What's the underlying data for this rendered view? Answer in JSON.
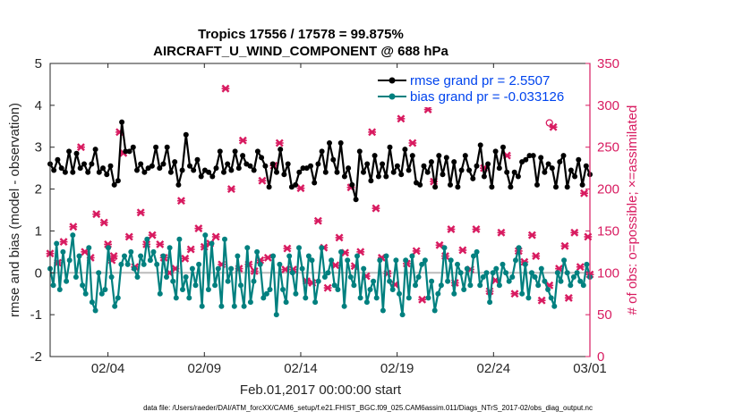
{
  "chart_data": {
    "type": "line",
    "title": "Tropics 17556 / 17578 = 99.875%",
    "subtitle": "AIRCRAFT_U_WIND_COMPONENT @ 688 hPa",
    "xlabel": "Feb.01,2017 00:00:00 start",
    "ylabel": "rmse and bias (model - observation)",
    "ylabel_right": "# of obs: o=possible; ×=assimilated",
    "xlim": [
      0,
      28
    ],
    "ylim": [
      -2,
      5
    ],
    "ylim_right": [
      0,
      350
    ],
    "x_ticks": [
      3,
      8,
      13,
      18,
      23,
      28
    ],
    "x_tick_labels": [
      "02/04",
      "02/09",
      "02/14",
      "02/19",
      "02/24",
      "03/01"
    ],
    "y_ticks": [
      -2,
      -1,
      0,
      1,
      2,
      3,
      4,
      5
    ],
    "y_tick_labels": [
      "-2",
      "-1",
      "0",
      "1",
      "2",
      "3",
      "4",
      "5"
    ],
    "y_ticks_right": [
      0,
      50,
      100,
      150,
      200,
      250,
      300,
      350
    ],
    "y_tick_labels_right": [
      "0",
      "50",
      "100",
      "150",
      "200",
      "250",
      "300",
      "350"
    ],
    "zero_line": 0,
    "footnote": "data file: /Users/raeder/DAI/ATM_forcXX/CAM6_setup/f.e21.FHIST_BGC.f09_025.CAM6assim.011/Diags_NTrS_2017-02/obs_diag_output.nc",
    "series": [
      {
        "name": "rmse grand pr = 2.5507",
        "color": "#000000",
        "marker": "circle",
        "axis": "left",
        "values": [
          2.6,
          2.45,
          2.7,
          2.5,
          2.4,
          2.9,
          2.4,
          2.85,
          2.5,
          2.6,
          2.4,
          2.6,
          2.95,
          2.4,
          2.5,
          2.35,
          2.55,
          2.1,
          2.2,
          3.6,
          2.9,
          2.9,
          3.0,
          2.45,
          2.6,
          2.4,
          2.5,
          2.55,
          3.0,
          2.5,
          2.6,
          3.0,
          2.4,
          2.65,
          2.1,
          2.45,
          3.3,
          2.55,
          2.45,
          2.7,
          2.3,
          2.45,
          2.4,
          2.3,
          2.5,
          2.9,
          2.4,
          2.6,
          2.45,
          2.9,
          2.5,
          2.8,
          2.6,
          2.55,
          2.45,
          2.9,
          2.75,
          2.55,
          2.05,
          2.6,
          2.4,
          2.95,
          2.35,
          2.6,
          2.05,
          2.1,
          2.4,
          2.5,
          2.5,
          2.55,
          2.15,
          2.6,
          2.9,
          2.4,
          3.1,
          2.7,
          2.4,
          3.1,
          2.3,
          2.5,
          2.1,
          1.75,
          2.9,
          2.4,
          2.6,
          2.2,
          2.8,
          2.3,
          2.6,
          2.3,
          3.0,
          2.4,
          2.55,
          2.35,
          2.95,
          2.45,
          2.8,
          2.15,
          2.1,
          2.55,
          2.4,
          2.65,
          2.05,
          2.8,
          2.35,
          2.75,
          2.1,
          2.65,
          2.05,
          2.45,
          2.8,
          2.45,
          2.25,
          2.55,
          3.05,
          2.3,
          2.6,
          2.05,
          2.9,
          2.5,
          3.0,
          2.4,
          2.05,
          2.4,
          2.3,
          2.65,
          2.7,
          2.8,
          2.8,
          2.1,
          2.75,
          2.4,
          2.6,
          2.5,
          2.05,
          2.65,
          2.8,
          2.05,
          2.45,
          2.3,
          2.7,
          2.1,
          2.55,
          2.35
        ]
      },
      {
        "name": "bias grand pr = -0.033126",
        "color": "#00807f",
        "marker": "circle",
        "axis": "left",
        "values": [
          0.1,
          -0.3,
          0.7,
          -0.4,
          0.5,
          -0.2,
          0.3,
          0.9,
          -0.1,
          0.4,
          -0.3,
          -0.5,
          0.6,
          -0.7,
          -0.9,
          0.0,
          -0.5,
          -0.4,
          0.6,
          -0.1,
          -0.8,
          -0.6,
          0.2,
          0.4,
          0.2,
          0.5,
          0.1,
          -0.1,
          0.4,
          0.2,
          0.8,
          0.3,
          0.5,
          0.2,
          -0.5,
          0.4,
          -0.1,
          0.6,
          -0.2,
          -0.6,
          0.8,
          -0.4,
          -0.1,
          -0.6,
          0.1,
          -0.3,
          0.2,
          -0.8,
          0.9,
          -0.4,
          0.7,
          -0.3,
          0.1,
          -0.8,
          0.8,
          -0.2,
          0.1,
          -0.8,
          0.4,
          -0.3,
          -0.8,
          0.6,
          -0.7,
          -0.2,
          0.5,
          0.2,
          -0.6,
          -0.5,
          -0.4,
          0.4,
          -1.0,
          0.2,
          -0.4,
          -0.7,
          0.4,
          0.0,
          -0.5,
          0.6,
          0.1,
          -0.6,
          0.4,
          0.3,
          -0.7,
          -0.2,
          0.6,
          -0.1,
          0.0,
          0.3,
          -0.3,
          -0.4,
          0.5,
          -0.8,
          0.3,
          -0.1,
          -0.3,
          0.4,
          -0.6,
          0.1,
          -0.7,
          -0.4,
          -0.2,
          -0.6,
          0.3,
          -0.9,
          0.4,
          -0.2,
          -0.4,
          0.3,
          -0.5,
          -1.0,
          0.3,
          -0.6,
          0.4,
          -0.3,
          -0.1,
          0.2,
          0.3,
          -0.6,
          -0.2,
          -0.9,
          -0.5,
          -0.3,
          0.6,
          -0.2,
          0.3,
          -0.5,
          0.2,
          0.0,
          -0.4,
          0.1,
          -0.3,
          0.4,
          0.5,
          -0.3,
          -0.1,
          0.0,
          -0.7,
          0.0,
          0.1,
          -0.3,
          0.2,
          0.0,
          -0.2,
          -0.1,
          0.3,
          0.6,
          -0.5,
          0.2,
          -0.6,
          0.0,
          -0.1,
          -0.3,
          0.1,
          -0.2,
          -0.4,
          -0.6,
          -0.8,
          0.0,
          -0.2,
          0.3,
          0.0,
          -0.3,
          -0.1,
          0.0,
          -0.2,
          -0.3,
          0.2,
          -0.1
        ]
      }
    ],
    "obs_counts": {
      "color": "#d81b60",
      "axis": "right",
      "assimilated": [
        [
          0.0,
          123
        ],
        [
          0.4,
          112
        ],
        [
          0.7,
          137
        ],
        [
          1.2,
          155
        ],
        [
          1.6,
          250
        ],
        [
          1.8,
          125
        ],
        [
          2.1,
          118
        ],
        [
          2.4,
          170
        ],
        [
          2.8,
          160
        ],
        [
          3.0,
          134
        ],
        [
          3.2,
          115
        ],
        [
          3.3,
          120
        ],
        [
          3.6,
          268
        ],
        [
          3.8,
          243
        ],
        [
          4.1,
          143
        ],
        [
          4.4,
          107
        ],
        [
          4.7,
          172
        ],
        [
          5.0,
          134
        ],
        [
          5.3,
          145
        ],
        [
          5.7,
          134
        ],
        [
          5.9,
          118
        ],
        [
          6.2,
          100
        ],
        [
          6.5,
          105
        ],
        [
          6.8,
          186
        ],
        [
          7.0,
          117
        ],
        [
          7.3,
          128
        ],
        [
          7.7,
          153
        ],
        [
          8.0,
          131
        ],
        [
          8.3,
          135
        ],
        [
          8.6,
          143
        ],
        [
          8.9,
          110
        ],
        [
          9.1,
          320
        ],
        [
          9.4,
          200
        ],
        [
          9.8,
          105
        ],
        [
          10.0,
          258
        ],
        [
          10.3,
          110
        ],
        [
          10.6,
          102
        ],
        [
          10.9,
          115
        ],
        [
          11.0,
          210
        ],
        [
          11.3,
          118
        ],
        [
          11.6,
          228
        ],
        [
          11.9,
          255
        ],
        [
          12.2,
          104
        ],
        [
          12.3,
          129
        ],
        [
          12.6,
          104
        ],
        [
          13.0,
          201
        ],
        [
          13.3,
          90
        ],
        [
          13.6,
          88
        ],
        [
          13.9,
          162
        ],
        [
          14.2,
          130
        ],
        [
          14.4,
          82
        ],
        [
          14.8,
          109
        ],
        [
          15.0,
          142
        ],
        [
          15.3,
          124
        ],
        [
          15.6,
          202
        ],
        [
          15.8,
          108
        ],
        [
          16.1,
          125
        ],
        [
          16.4,
          96
        ],
        [
          16.7,
          268
        ],
        [
          16.9,
          177
        ],
        [
          17.2,
          118
        ],
        [
          17.5,
          99
        ],
        [
          17.9,
          86
        ],
        [
          18.2,
          284
        ],
        [
          18.5,
          111
        ],
        [
          18.8,
          255
        ],
        [
          19.0,
          126
        ],
        [
          19.3,
          68
        ],
        [
          19.6,
          295
        ],
        [
          19.9,
          209
        ],
        [
          20.2,
          133
        ],
        [
          20.5,
          120
        ],
        [
          20.8,
          152
        ],
        [
          21.0,
          88
        ],
        [
          21.4,
          127
        ],
        [
          21.8,
          104
        ],
        [
          22.1,
          152
        ],
        [
          22.5,
          225
        ],
        [
          22.8,
          78
        ],
        [
          23.1,
          91
        ],
        [
          23.4,
          148
        ],
        [
          23.7,
          240
        ],
        [
          24.1,
          75
        ],
        [
          24.3,
          126
        ],
        [
          24.6,
          113
        ],
        [
          25.0,
          145
        ],
        [
          25.2,
          120
        ],
        [
          25.5,
          67
        ],
        [
          25.9,
          85
        ],
        [
          26.1,
          274
        ],
        [
          26.4,
          105
        ],
        [
          26.7,
          132
        ],
        [
          26.9,
          70
        ],
        [
          27.2,
          148
        ],
        [
          27.5,
          107
        ],
        [
          27.7,
          195
        ],
        [
          27.9,
          143
        ],
        [
          28.0,
          98
        ]
      ],
      "possible": [
        [
          25.9,
          279
        ]
      ]
    }
  }
}
